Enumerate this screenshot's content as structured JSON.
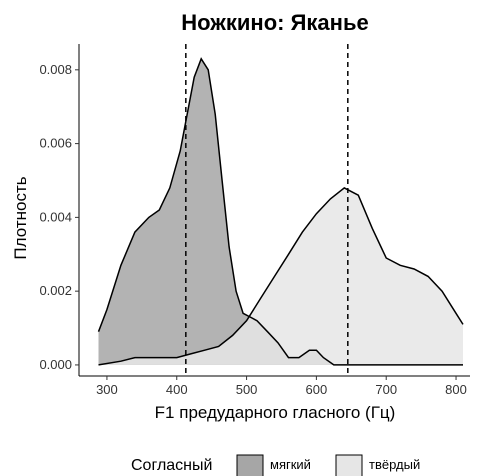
{
  "chart_data": {
    "type": "area",
    "title": "Ножкино: Яканье",
    "xlabel": "F1 предударного гласного (Гц)",
    "ylabel": "Плотность",
    "xlim": [
      260,
      820
    ],
    "ylim": [
      -0.0003,
      0.0087
    ],
    "x_ticks": [
      300,
      400,
      500,
      600,
      700,
      800
    ],
    "y_ticks": [
      0.0,
      0.002,
      0.004,
      0.006,
      0.008
    ],
    "y_tick_labels": [
      "0.000",
      "0.002",
      "0.004",
      "0.006",
      "0.008"
    ],
    "grid": false,
    "legend": {
      "title": "Согласный",
      "placement": "bottom"
    },
    "series": [
      {
        "name": "мягкий",
        "fill": "#a6a6a6",
        "points": [
          [
            288,
            0.0009
          ],
          [
            300,
            0.0015
          ],
          [
            320,
            0.0027
          ],
          [
            340,
            0.0036
          ],
          [
            360,
            0.004
          ],
          [
            375,
            0.0042
          ],
          [
            390,
            0.0048
          ],
          [
            405,
            0.0058
          ],
          [
            415,
            0.0068
          ],
          [
            425,
            0.0078
          ],
          [
            435,
            0.0083
          ],
          [
            445,
            0.008
          ],
          [
            455,
            0.0068
          ],
          [
            465,
            0.005
          ],
          [
            475,
            0.0032
          ],
          [
            485,
            0.002
          ],
          [
            495,
            0.0014
          ],
          [
            505,
            0.0013
          ],
          [
            515,
            0.0012
          ],
          [
            530,
            0.0009
          ],
          [
            545,
            0.0006
          ],
          [
            560,
            0.0002
          ],
          [
            575,
            0.0002
          ],
          [
            590,
            0.0004
          ],
          [
            600,
            0.0004
          ],
          [
            610,
            0.0002
          ],
          [
            625,
            0.0
          ],
          [
            640,
            0.0
          ],
          [
            660,
            0.0
          ],
          [
            700,
            0.0
          ],
          [
            750,
            0.0
          ],
          [
            810,
            0.0
          ]
        ]
      },
      {
        "name": "твёрдый",
        "fill": "#e6e6e6",
        "points": [
          [
            288,
            0.0
          ],
          [
            320,
            0.0001
          ],
          [
            340,
            0.0002
          ],
          [
            360,
            0.0002
          ],
          [
            380,
            0.0002
          ],
          [
            400,
            0.0002
          ],
          [
            420,
            0.0003
          ],
          [
            440,
            0.0004
          ],
          [
            460,
            0.0005
          ],
          [
            480,
            0.0008
          ],
          [
            500,
            0.0012
          ],
          [
            520,
            0.0018
          ],
          [
            540,
            0.0024
          ],
          [
            560,
            0.003
          ],
          [
            580,
            0.0036
          ],
          [
            600,
            0.0041
          ],
          [
            620,
            0.0045
          ],
          [
            640,
            0.0048
          ],
          [
            660,
            0.0046
          ],
          [
            680,
            0.0037
          ],
          [
            700,
            0.0029
          ],
          [
            720,
            0.0027
          ],
          [
            740,
            0.0026
          ],
          [
            760,
            0.0024
          ],
          [
            780,
            0.002
          ],
          [
            800,
            0.0014
          ],
          [
            810,
            0.0011
          ]
        ]
      }
    ],
    "vlines": [
      {
        "x": 413,
        "style": "dashed"
      },
      {
        "x": 645,
        "style": "dashed"
      }
    ]
  },
  "colors": {
    "soft_fill": "#a6a6a6",
    "hard_fill": "#e6e6e6",
    "outline": "#000000"
  }
}
